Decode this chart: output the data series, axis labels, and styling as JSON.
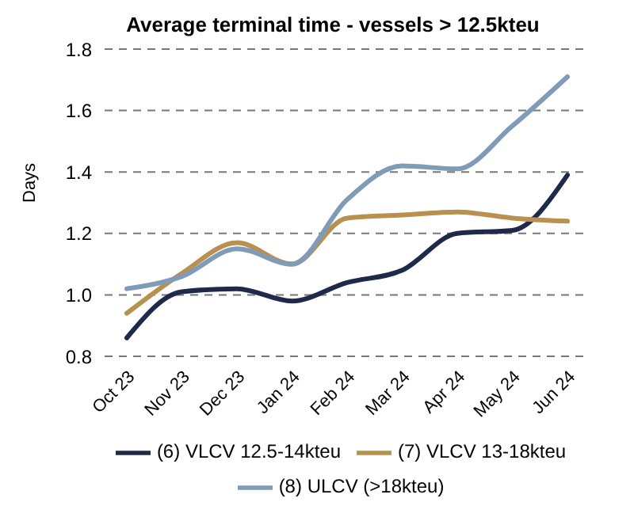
{
  "chart_data": {
    "type": "line",
    "title": "Average terminal time - vessels > 12.5kteu",
    "ylabel": "Days",
    "categories": [
      "Oct 23",
      "Nov 23",
      "Dec 23",
      "Jan 24",
      "Feb 24",
      "Mar 24",
      "Apr 24",
      "May 24",
      "Jun 24"
    ],
    "series": [
      {
        "name": "(6) VLCV 12.5-14kteu",
        "color": "#1f2a4a",
        "values": [
          0.86,
          1.01,
          1.02,
          0.98,
          1.04,
          1.08,
          1.2,
          1.21,
          1.39
        ]
      },
      {
        "name": "(7) VLCV 13-18kteu",
        "color": "#b8904f",
        "values": [
          0.94,
          1.07,
          1.17,
          1.1,
          1.25,
          1.26,
          1.27,
          1.25,
          1.24
        ]
      },
      {
        "name": "(8) ULCV (>18kteu)",
        "color": "#7f9bb8",
        "values": [
          1.02,
          1.06,
          1.15,
          1.1,
          1.31,
          1.42,
          1.41,
          1.55,
          1.71
        ]
      }
    ],
    "ylim": [
      0.8,
      1.8
    ],
    "yticks": [
      {
        "value": 0.8,
        "label": "0.8"
      },
      {
        "value": 1.0,
        "label": "1.0"
      },
      {
        "value": 1.2,
        "label": "1.2"
      },
      {
        "value": 1.4,
        "label": "1.4"
      },
      {
        "value": 1.6,
        "label": "1.6"
      },
      {
        "value": 1.8,
        "label": "1.8"
      }
    ],
    "grid": "y",
    "legend": "bottom",
    "marker": "none",
    "line_style": "solid"
  }
}
